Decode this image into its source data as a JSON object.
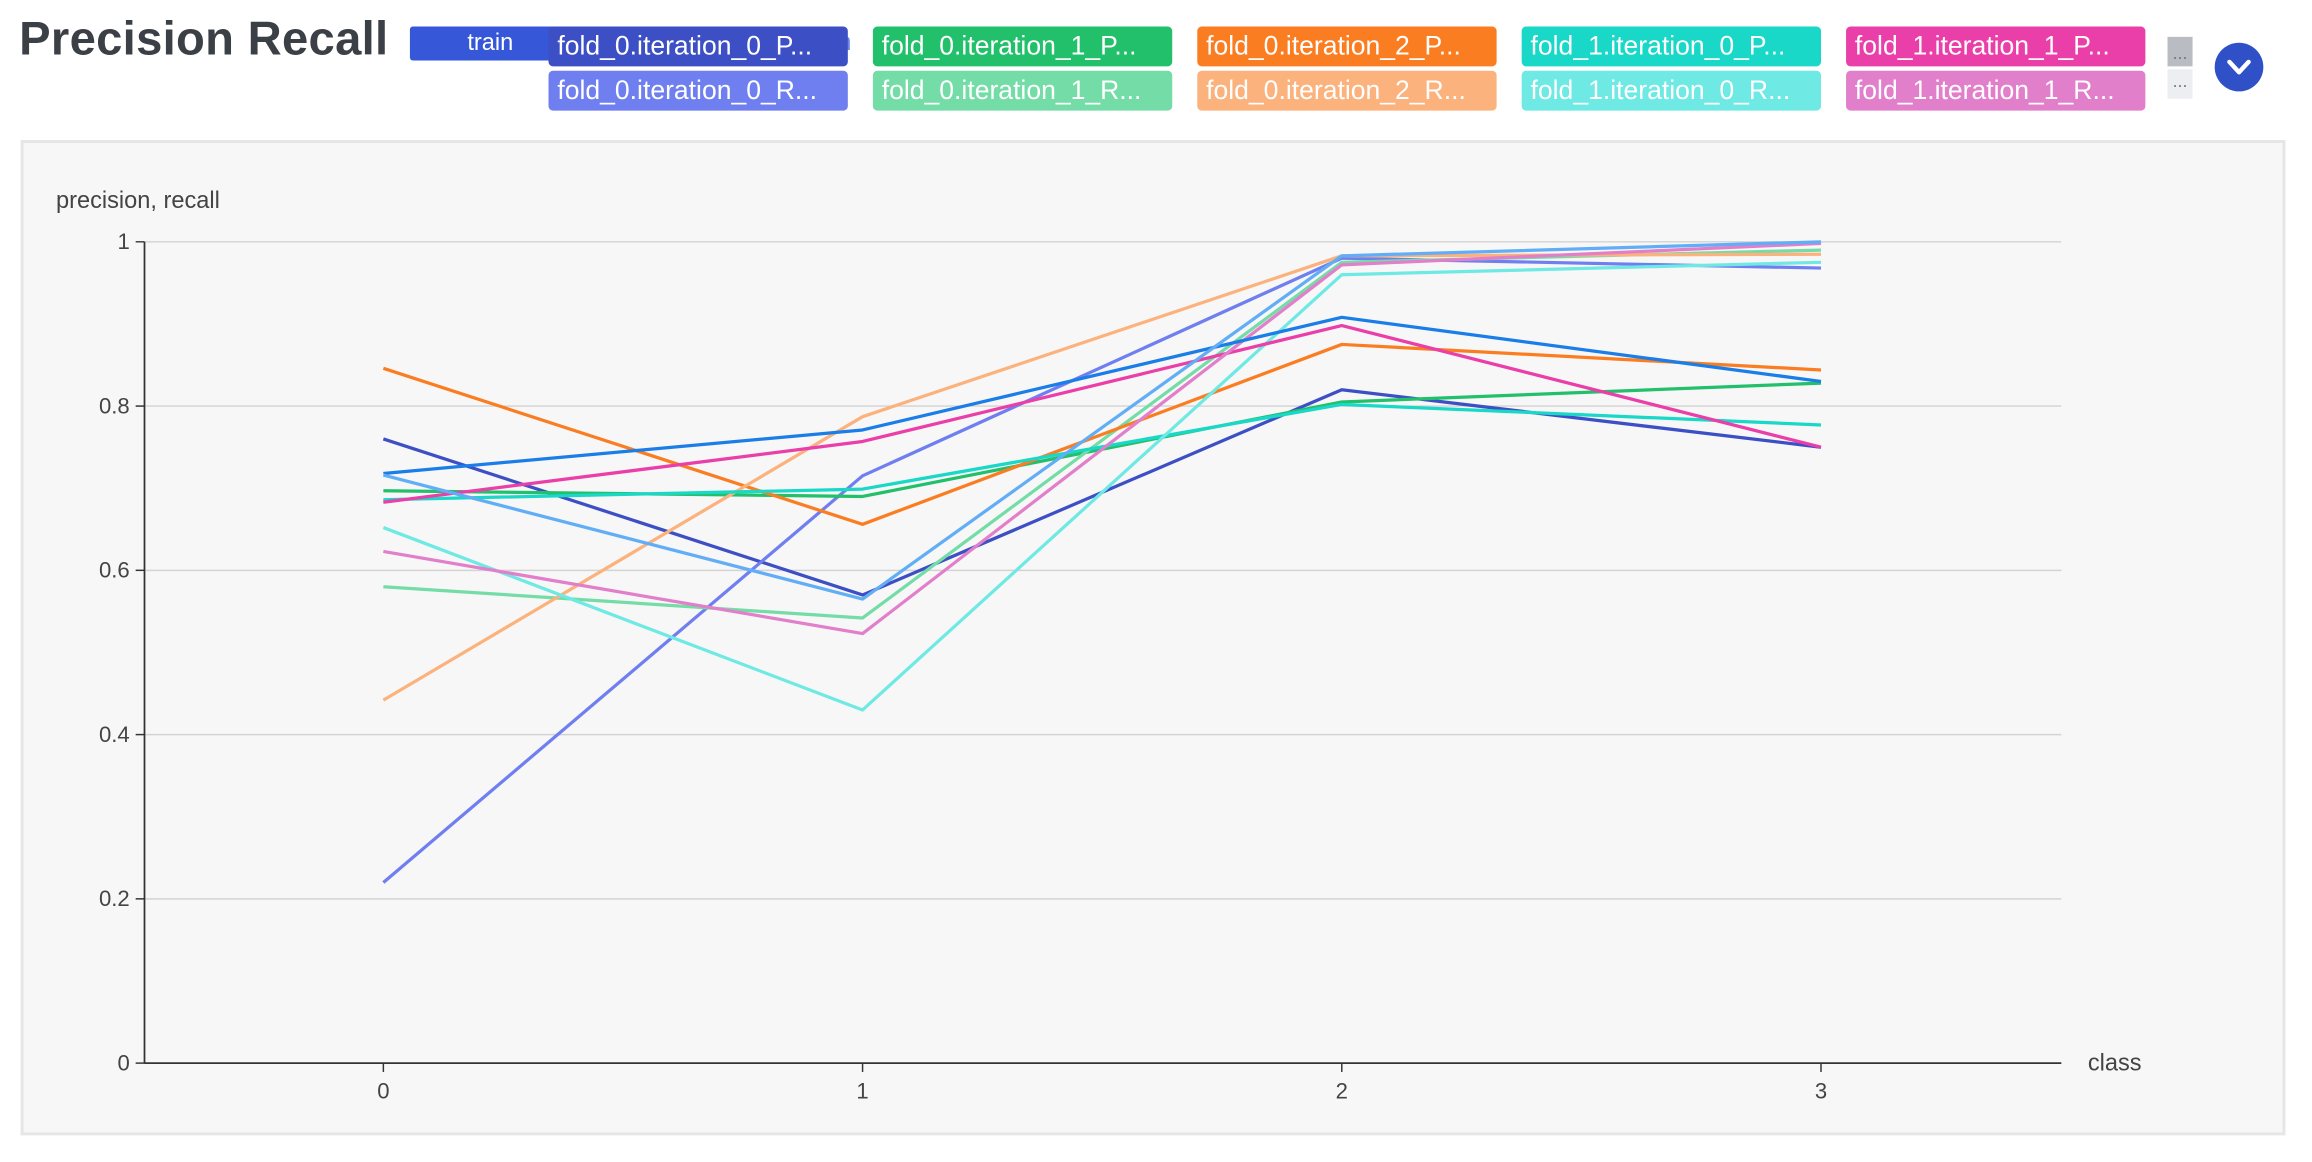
{
  "header": {
    "title": "Precision Recall",
    "selected_dataset": "train",
    "dataset_trail": "n"
  },
  "legend": {
    "items": [
      {
        "label": "fold_0.iteration_0_P...",
        "color": "#3d4fc4"
      },
      {
        "label": "fold_0.iteration_0_R...",
        "color": "#6f7ff0"
      },
      {
        "label": "fold_0.iteration_1_P...",
        "color": "#22c06a"
      },
      {
        "label": "fold_0.iteration_1_R...",
        "color": "#74dca6"
      },
      {
        "label": "fold_0.iteration_2_P...",
        "color": "#fb7d22"
      },
      {
        "label": "fold_0.iteration_2_R...",
        "color": "#fcb27c"
      },
      {
        "label": "fold_1.iteration_0_P...",
        "color": "#19d8c8"
      },
      {
        "label": "fold_1.iteration_0_R...",
        "color": "#6fe9e4"
      },
      {
        "label": "fold_1.iteration_1_P...",
        "color": "#ea3fa9"
      },
      {
        "label": "fold_1.iteration_1_R...",
        "color": "#e27fcb"
      }
    ],
    "scroll_glyph": "...",
    "expand_icon": "chevron-down-icon"
  },
  "chart_data": {
    "type": "line",
    "ylabel": "precision, recall",
    "xlabel": "class",
    "x": [
      0,
      1,
      2,
      3
    ],
    "ylim": [
      0,
      1
    ],
    "yticks": [
      "0",
      "0.2",
      "0.4",
      "0.6",
      "0.8",
      "1"
    ],
    "grid": true,
    "series": [
      {
        "color": "#3d4fc4",
        "values": [
          0.76,
          0.57,
          0.82,
          0.75
        ]
      },
      {
        "color": "#6f7ff0",
        "values": [
          0.22,
          0.715,
          0.98,
          0.968
        ]
      },
      {
        "color": "#22c06a",
        "values": [
          0.697,
          0.69,
          0.805,
          0.828
        ]
      },
      {
        "color": "#74dca6",
        "values": [
          0.58,
          0.542,
          0.975,
          0.99
        ]
      },
      {
        "color": "#fb7d22",
        "values": [
          0.846,
          0.656,
          0.875,
          0.844
        ]
      },
      {
        "color": "#fcb27c",
        "values": [
          0.442,
          0.787,
          0.983,
          0.985
        ]
      },
      {
        "color": "#19d8c8",
        "values": [
          0.686,
          0.699,
          0.802,
          0.777
        ]
      },
      {
        "color": "#6fe9e4",
        "values": [
          0.652,
          0.43,
          0.96,
          0.975
        ]
      },
      {
        "color": "#ea3fa9",
        "values": [
          0.683,
          0.757,
          0.898,
          0.75
        ]
      },
      {
        "color": "#e27fcb",
        "values": [
          0.623,
          0.523,
          0.972,
          0.998
        ]
      },
      {
        "color": "#1a7de8",
        "values": [
          0.718,
          0.771,
          0.908,
          0.83
        ]
      },
      {
        "color": "#62aef6",
        "values": [
          0.716,
          0.565,
          0.983,
          1.0
        ]
      }
    ]
  }
}
